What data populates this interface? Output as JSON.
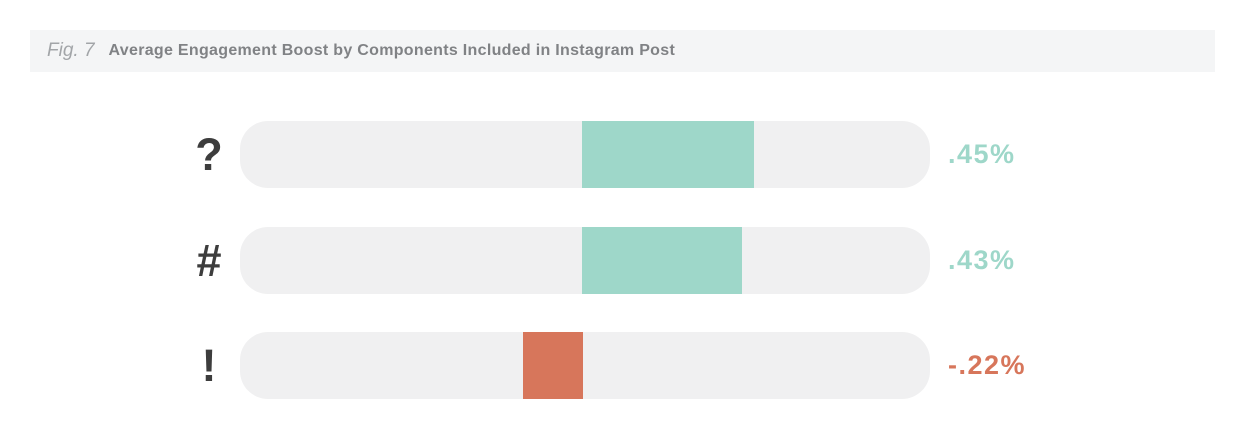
{
  "figure": {
    "fig_label": "Fig. 7",
    "title": "Average Engagement Boost by Components Included in Instagram Post"
  },
  "colors": {
    "positive": "#9ed7c9",
    "negative": "#d7765b",
    "track": "#f0f0f1",
    "header_bg": "#f4f5f6",
    "icon": "#3d3d3d",
    "fig_label_text": "#a2a5a8",
    "title_text": "#808285"
  },
  "chart_data": {
    "type": "bar",
    "orientation": "horizontal",
    "title": "Average Engagement Boost by Components Included in Instagram Post",
    "xlabel": "",
    "ylabel": "",
    "categories": [
      "question-mark",
      "hashtag",
      "exclamation-mark"
    ],
    "category_glyphs": [
      "?",
      "#",
      "!"
    ],
    "values": [
      0.45,
      0.43,
      -0.22
    ],
    "value_labels": [
      ".45%",
      ".43%",
      "-.22%"
    ],
    "unit": "% engagement boost",
    "baseline_fraction": 0.4957,
    "pixel_fractions": [
      {
        "from": 0.4957,
        "to": 0.7449
      },
      {
        "from": 0.4957,
        "to": 0.7275
      },
      {
        "from": 0.4101,
        "to": 0.4971
      }
    ],
    "grid": false,
    "legend": false
  }
}
